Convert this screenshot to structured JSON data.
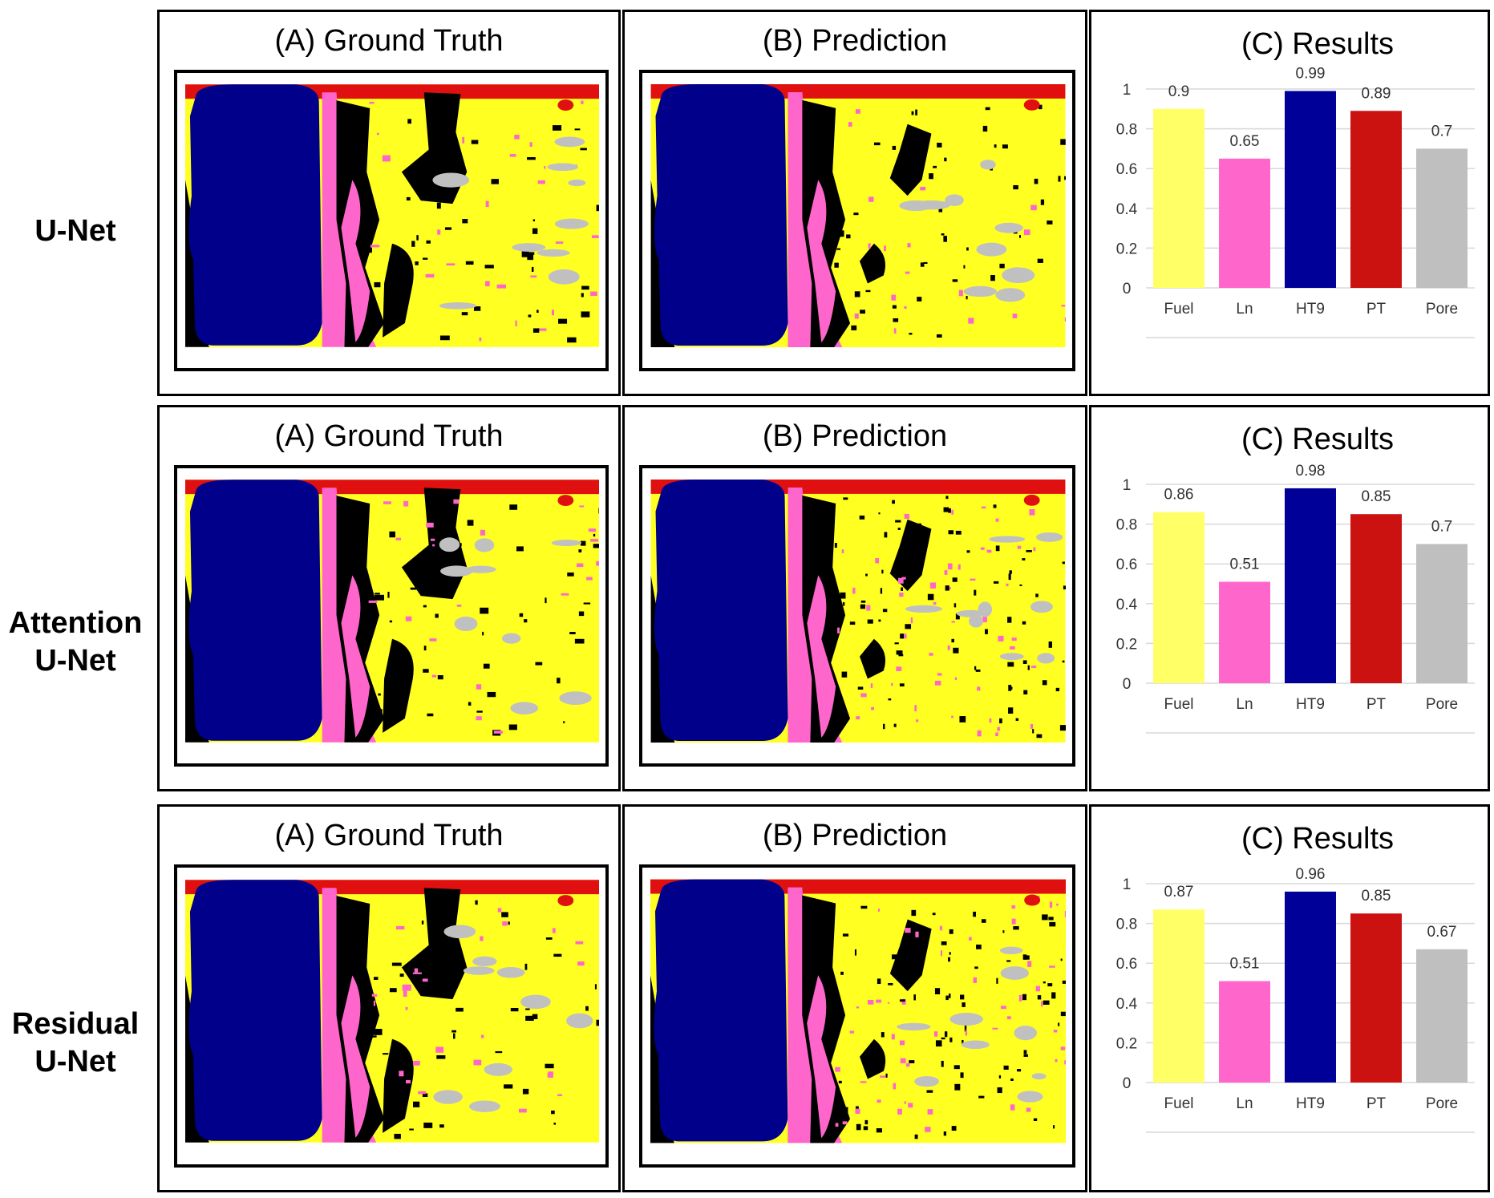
{
  "rows": [
    {
      "label_lines": [
        "U-Net"
      ],
      "gt_title": "(A) Ground Truth",
      "pred_title": "(B) Prediction",
      "chart_title": "(C) Results"
    },
    {
      "label_lines": [
        "Attention",
        "U-Net"
      ],
      "gt_title": "(A) Ground Truth",
      "pred_title": "(B) Prediction",
      "chart_title": "(C) Results"
    },
    {
      "label_lines": [
        "Residual",
        "U-Net"
      ],
      "gt_title": "(A) Ground Truth",
      "pred_title": "(B) Prediction",
      "chart_title": "(C) Results"
    }
  ],
  "colors": {
    "Fuel": "#ffff66",
    "Ln": "#ff66cc",
    "HT9": "#000099",
    "PT": "#cc1111",
    "Pore": "#bfbfbf",
    "seg_black": "#000000",
    "seg_red": "#e01010",
    "seg_yellow": "#ffff22",
    "seg_blue": "#00008b",
    "seg_pink": "#ff66cc",
    "seg_gray": "#c0c0c0",
    "grid": "#d9d9d9"
  },
  "chart_data": [
    {
      "type": "bar",
      "title": "(C) Results",
      "categories": [
        "Fuel",
        "Ln",
        "HT9",
        "PT",
        "Pore"
      ],
      "values": [
        0.9,
        0.65,
        0.99,
        0.89,
        0.7
      ],
      "value_labels": [
        "0.9",
        "0.65",
        "0.99",
        "0.89",
        "0.7"
      ],
      "ylim": [
        0,
        1
      ],
      "yticks": [
        "0",
        "0.2",
        "0.4",
        "0.6",
        "0.8",
        "1"
      ],
      "xlabel": "",
      "ylabel": ""
    },
    {
      "type": "bar",
      "title": "(C) Results",
      "categories": [
        "Fuel",
        "Ln",
        "HT9",
        "PT",
        "Pore"
      ],
      "values": [
        0.86,
        0.51,
        0.98,
        0.85,
        0.7
      ],
      "value_labels": [
        "0.86",
        "0.51",
        "0.98",
        "0.85",
        "0.7"
      ],
      "ylim": [
        0,
        1
      ],
      "yticks": [
        "0",
        "0.2",
        "0.4",
        "0.6",
        "0.8",
        "1"
      ],
      "xlabel": "",
      "ylabel": ""
    },
    {
      "type": "bar",
      "title": "(C) Results",
      "categories": [
        "Fuel",
        "Ln",
        "HT9",
        "PT",
        "Pore"
      ],
      "values": [
        0.87,
        0.51,
        0.96,
        0.85,
        0.67
      ],
      "value_labels": [
        "0.87",
        "0.51",
        "0.96",
        "0.85",
        "0.67"
      ],
      "ylim": [
        0,
        1
      ],
      "yticks": [
        "0",
        "0.2",
        "0.4",
        "0.6",
        "0.8",
        "1"
      ],
      "xlabel": "",
      "ylabel": ""
    }
  ]
}
